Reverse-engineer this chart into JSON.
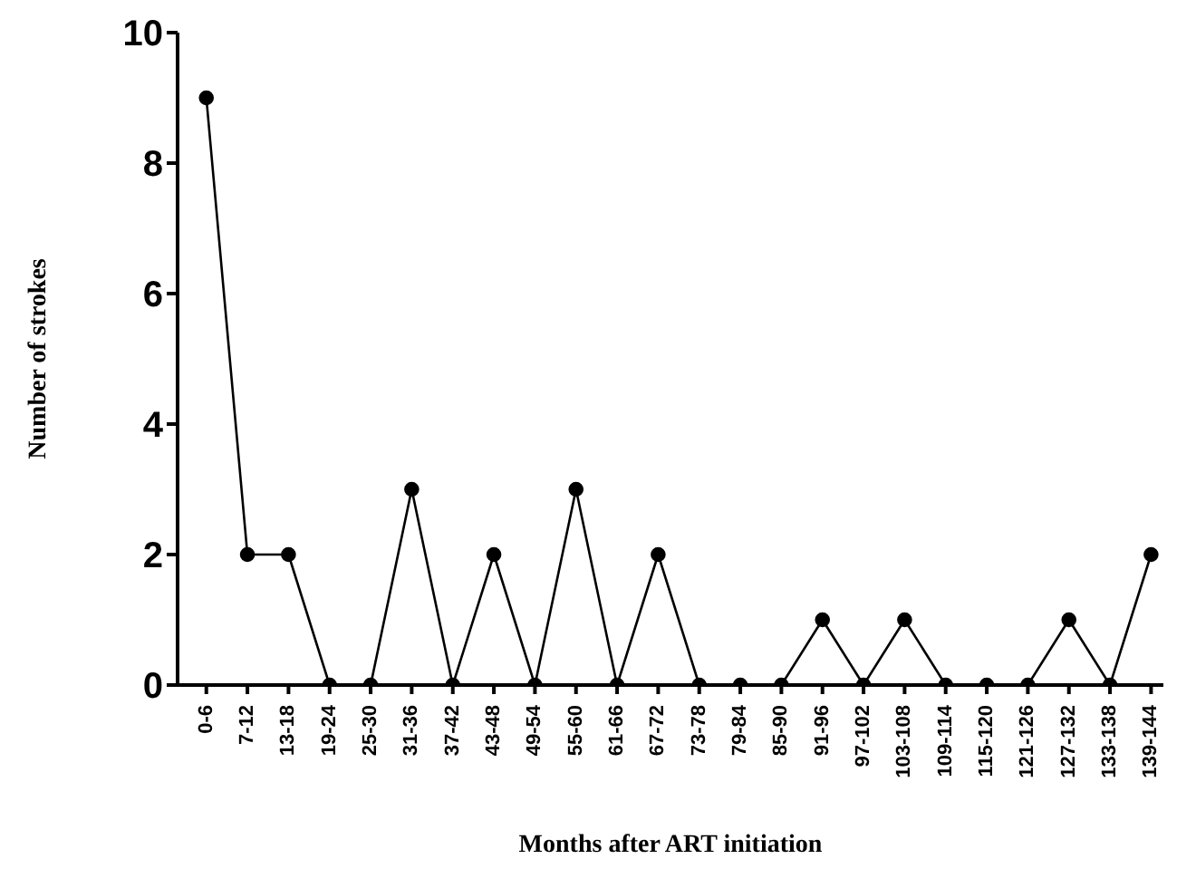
{
  "chart_data": {
    "type": "line",
    "xlabel": "Months after ART initiation",
    "ylabel": "Number of strokes",
    "categories": [
      "0-6",
      "7-12",
      "13-18",
      "19-24",
      "25-30",
      "31-36",
      "37-42",
      "43-48",
      "49-54",
      "55-60",
      "61-66",
      "67-72",
      "73-78",
      "79-84",
      "85-90",
      "91-96",
      "97-102",
      "103-108",
      "109-114",
      "115-120",
      "121-126",
      "127-132",
      "133-138",
      "139-144"
    ],
    "series": [
      {
        "color": "#000000",
        "values": [
          9,
          2,
          2,
          0,
          0,
          3,
          0,
          2,
          0,
          3,
          0,
          2,
          0,
          0,
          0,
          1,
          0,
          1,
          0,
          0,
          0,
          1,
          0,
          2
        ]
      }
    ],
    "ylim": [
      0,
      10
    ],
    "yticks": [
      0,
      2,
      4,
      6,
      8,
      10
    ],
    "grid": false,
    "legend": false,
    "marker": "circle",
    "line_style": "solid"
  }
}
